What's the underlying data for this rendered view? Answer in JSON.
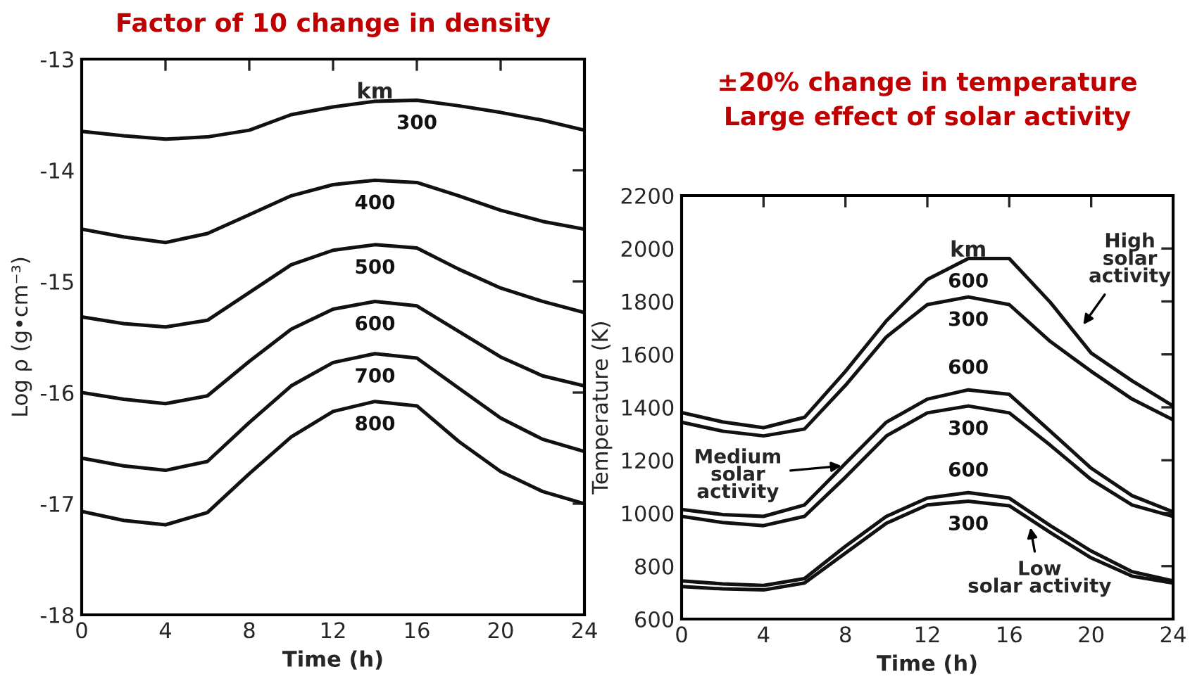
{
  "chart_data": [
    {
      "type": "line",
      "title": "Factor of 10 change in density",
      "xlabel": "Time (h)",
      "ylabel": "Log ρ (g•cm⁻³)",
      "x": [
        0,
        2,
        4,
        6,
        8,
        10,
        12,
        14,
        16,
        18,
        20,
        22,
        24
      ],
      "xlim": [
        0,
        24
      ],
      "xticks": [
        0,
        4,
        8,
        12,
        16,
        20,
        24
      ],
      "ylim": [
        -18,
        -13
      ],
      "yticks": [
        -18,
        -17,
        -16,
        -15,
        -14,
        -13
      ],
      "grid": false,
      "legend": false,
      "marker": "none",
      "line_style": "solid",
      "series": [
        {
          "name": "300",
          "color": "#111111",
          "values": [
            -13.65,
            -13.69,
            -13.72,
            -13.7,
            -13.64,
            -13.5,
            -13.43,
            -13.38,
            -13.37,
            -13.42,
            -13.48,
            -13.55,
            -13.64
          ]
        },
        {
          "name": "400",
          "color": "#111111",
          "values": [
            -14.53,
            -14.6,
            -14.65,
            -14.57,
            -14.4,
            -14.23,
            -14.13,
            -14.09,
            -14.11,
            -14.23,
            -14.36,
            -14.46,
            -14.53
          ]
        },
        {
          "name": "500",
          "color": "#111111",
          "values": [
            -15.32,
            -15.38,
            -15.41,
            -15.35,
            -15.1,
            -14.85,
            -14.72,
            -14.67,
            -14.7,
            -14.89,
            -15.06,
            -15.18,
            -15.28
          ]
        },
        {
          "name": "600",
          "color": "#111111",
          "values": [
            -16.0,
            -16.06,
            -16.1,
            -16.03,
            -15.72,
            -15.43,
            -15.25,
            -15.18,
            -15.22,
            -15.45,
            -15.68,
            -15.85,
            -15.94
          ]
        },
        {
          "name": "700",
          "color": "#111111",
          "values": [
            -16.59,
            -16.66,
            -16.7,
            -16.62,
            -16.27,
            -15.94,
            -15.73,
            -15.65,
            -15.69,
            -15.96,
            -16.23,
            -16.42,
            -16.53
          ]
        },
        {
          "name": "800",
          "color": "#111111",
          "values": [
            -17.07,
            -17.15,
            -17.19,
            -17.08,
            -16.73,
            -16.4,
            -16.17,
            -16.08,
            -16.12,
            -16.44,
            -16.71,
            -16.89,
            -17.0
          ]
        }
      ],
      "annotations": [
        "km"
      ]
    },
    {
      "type": "line",
      "title": "±20% change in temperature",
      "subtitle": "Large effect of solar activity",
      "xlabel": "Time (h)",
      "ylabel": "Temperature (K)",
      "x": [
        0,
        2,
        4,
        6,
        8,
        10,
        12,
        14,
        16,
        18,
        20,
        22,
        24
      ],
      "xlim": [
        0,
        24
      ],
      "xticks": [
        0,
        4,
        8,
        12,
        16,
        20,
        24
      ],
      "ylim": [
        600,
        2200
      ],
      "yticks": [
        600,
        800,
        1000,
        1200,
        1400,
        1600,
        1800,
        2000,
        2200
      ],
      "grid": false,
      "legend": false,
      "marker": "none",
      "line_style": "solid",
      "series": [
        {
          "name": "600",
          "color": "#111111",
          "values": [
            1380,
            1345,
            1323,
            1362,
            1536,
            1727,
            1883,
            1962,
            1962,
            1797,
            1605,
            1500,
            1405
          ]
        },
        {
          "name": "300",
          "color": "#111111",
          "values": [
            1344,
            1310,
            1292,
            1318,
            1483,
            1666,
            1788,
            1817,
            1788,
            1649,
            1536,
            1431,
            1353
          ]
        },
        {
          "name": "600",
          "color": "#111111",
          "values": [
            1014,
            995,
            988,
            1031,
            1188,
            1344,
            1431,
            1466,
            1449,
            1310,
            1170,
            1066,
            1005
          ]
        },
        {
          "name": "300",
          "color": "#111111",
          "values": [
            988,
            965,
            953,
            988,
            1136,
            1292,
            1379,
            1405,
            1379,
            1257,
            1127,
            1031,
            988
          ]
        },
        {
          "name": "600",
          "color": "#111111",
          "values": [
            744,
            733,
            727,
            753,
            875,
            988,
            1057,
            1078,
            1057,
            953,
            857,
            779,
            744
          ]
        },
        {
          "name": "300",
          "color": "#111111",
          "values": [
            723,
            714,
            710,
            736,
            849,
            962,
            1031,
            1045,
            1028,
            927,
            831,
            762,
            736
          ]
        }
      ],
      "annotations": [
        "km",
        {
          "text": "High\nsolar\nactivity",
          "x": 19.5,
          "y": 1700
        },
        {
          "text": "Medium\nsolar\nactivity",
          "x": 8,
          "y": 1180
        },
        {
          "text": "Low\nsolar activity",
          "x": 17,
          "y": 960
        }
      ]
    }
  ]
}
